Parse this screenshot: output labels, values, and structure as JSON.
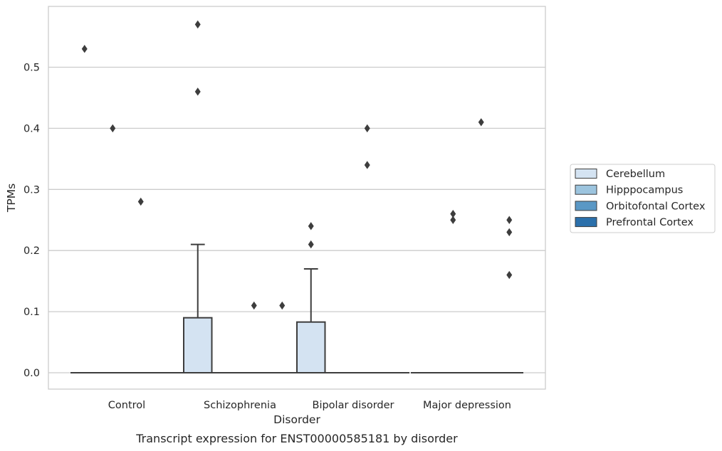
{
  "chart_data": {
    "type": "box",
    "title": "",
    "xlabel": "Disorder",
    "ylabel": "TPMs",
    "caption": "Transcript expression for ENST00000585181 by disorder",
    "categories": [
      "Control",
      "Schizophrenia",
      "Bipolar disorder",
      "Major depression"
    ],
    "ylim": [
      -0.028,
      0.6
    ],
    "yticks": [
      0.0,
      0.1,
      0.2,
      0.3,
      0.4,
      0.5
    ],
    "ytick_labels": [
      "0.0",
      "0.1",
      "0.2",
      "0.3",
      "0.4",
      "0.5"
    ],
    "grid": "horizontal",
    "legend": {
      "placement": "center-right"
    },
    "series": [
      {
        "name": "Cerebellum",
        "color": "#d4e3f2",
        "boxes": [
          {
            "q1": 0,
            "median": 0,
            "q3": 0,
            "whisker_low": 0,
            "whisker_high": 0,
            "outliers": [
              0.53
            ]
          },
          {
            "q1": 0,
            "median": 0,
            "q3": 0.09,
            "whisker_low": 0,
            "whisker_high": 0.21,
            "outliers": [
              0.46,
              0.57
            ]
          },
          {
            "q1": 0,
            "median": 0,
            "q3": 0.083,
            "whisker_low": 0,
            "whisker_high": 0.17,
            "outliers": [
              0.21,
              0.24
            ]
          },
          {
            "q1": 0,
            "median": 0,
            "q3": 0,
            "whisker_low": 0,
            "whisker_high": 0,
            "outliers": []
          }
        ]
      },
      {
        "name": "Hipppocampus",
        "color": "#9cc4de",
        "boxes": [
          {
            "q1": 0,
            "median": 0,
            "q3": 0,
            "whisker_low": 0,
            "whisker_high": 0,
            "outliers": [
              0.4
            ]
          },
          {
            "q1": 0,
            "median": 0,
            "q3": 0,
            "whisker_low": 0,
            "whisker_high": 0,
            "outliers": []
          },
          {
            "q1": 0,
            "median": 0,
            "q3": 0,
            "whisker_low": 0,
            "whisker_high": 0,
            "outliers": []
          },
          {
            "q1": 0,
            "median": 0,
            "q3": 0,
            "whisker_low": 0,
            "whisker_high": 0,
            "outliers": [
              0.25,
              0.26
            ]
          }
        ]
      },
      {
        "name": "Orbitofontal Cortex",
        "color": "#5a98c5",
        "boxes": [
          {
            "q1": 0,
            "median": 0,
            "q3": 0,
            "whisker_low": 0,
            "whisker_high": 0,
            "outliers": [
              0.28
            ]
          },
          {
            "q1": 0,
            "median": 0,
            "q3": 0,
            "whisker_low": 0,
            "whisker_high": 0,
            "outliers": [
              0.11
            ]
          },
          {
            "q1": 0,
            "median": 0,
            "q3": 0,
            "whisker_low": 0,
            "whisker_high": 0,
            "outliers": [
              0.34,
              0.4
            ]
          },
          {
            "q1": 0,
            "median": 0,
            "q3": 0,
            "whisker_low": 0,
            "whisker_high": 0,
            "outliers": [
              0.41
            ]
          }
        ]
      },
      {
        "name": "Prefrontal Cortex",
        "color": "#2b70ab",
        "boxes": [
          {
            "q1": 0,
            "median": 0,
            "q3": 0,
            "whisker_low": 0,
            "whisker_high": 0,
            "outliers": []
          },
          {
            "q1": 0,
            "median": 0,
            "q3": 0,
            "whisker_low": 0,
            "whisker_high": 0,
            "outliers": [
              0.11
            ]
          },
          {
            "q1": 0,
            "median": 0,
            "q3": 0,
            "whisker_low": 0,
            "whisker_high": 0,
            "outliers": []
          },
          {
            "q1": 0,
            "median": 0,
            "q3": 0,
            "whisker_low": 0,
            "whisker_high": 0,
            "outliers": [
              0.16,
              0.23,
              0.25
            ]
          }
        ]
      }
    ],
    "colors": {
      "grid": "#cccccc",
      "frame": "#cccccc",
      "line": "#3d3d3d",
      "text": "#262626"
    }
  }
}
